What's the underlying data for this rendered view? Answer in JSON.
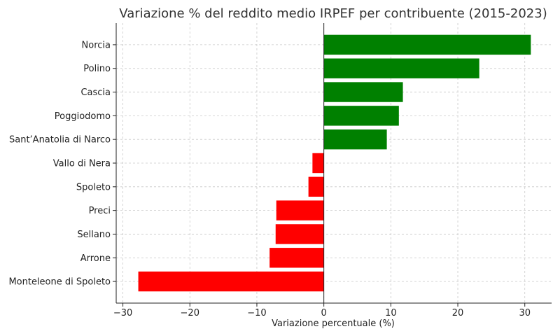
{
  "chart_data": {
    "type": "bar",
    "orientation": "horizontal",
    "title": "Variazione % del reddito medio IRPEF per contribuente (2015-2023)",
    "xlabel": "Variazione percentuale (%)",
    "ylabel": "",
    "xlim": [
      -31,
      34
    ],
    "xticks": [
      -30,
      -20,
      -10,
      0,
      10,
      20,
      30
    ],
    "xtick_labels": [
      "−30",
      "−20",
      "−10",
      "0",
      "10",
      "20",
      "30"
    ],
    "grid": true,
    "categories": [
      "Norcia",
      "Polino",
      "Cascia",
      "Poggiodomo",
      "Sant’Anatolia di Narco",
      "Vallo di Nera",
      "Spoleto",
      "Preci",
      "Sellano",
      "Arrone",
      "Monteleone di Spoleto"
    ],
    "values": [
      30.9,
      23.2,
      11.8,
      11.2,
      9.4,
      -1.7,
      -2.3,
      -7.1,
      -7.2,
      -8.1,
      -27.7
    ],
    "colors": {
      "positive": "#008000",
      "negative": "#ff0000"
    }
  }
}
